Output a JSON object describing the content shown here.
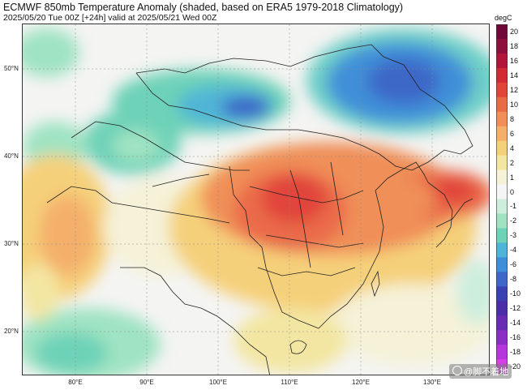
{
  "header": {
    "title": "ECMWF 850mb Temperature Anomaly (shaded, based on ERA5 1979-2018 Climatology)",
    "subtitle": "2025/05/20 Tue 00Z [+24h] valid at 2025/05/21 Wed 00Z"
  },
  "axes": {
    "lat_labels": [
      "50°N",
      "40°N",
      "30°N",
      "20°N"
    ],
    "lon_labels": [
      "80°E",
      "90°E",
      "100°E",
      "110°E",
      "120°E",
      "130°E"
    ]
  },
  "colorbar": {
    "unit": "degC",
    "ticks": [
      "20",
      "18",
      "16",
      "14",
      "12",
      "10",
      "8",
      "6",
      "4",
      "2",
      "1",
      "0",
      "-1",
      "-2",
      "-3",
      "-4",
      "-6",
      "-8",
      "-10",
      "-12",
      "-14",
      "-16",
      "-18",
      "-20"
    ],
    "colors": [
      "#6f0a38",
      "#8e0f3b",
      "#b3143a",
      "#d12a32",
      "#e1453a",
      "#ea6a48",
      "#f08f59",
      "#f4b06a",
      "#f5d07a",
      "#f3e6a2",
      "#f5f2d8",
      "#f5f5f5",
      "#cdeedd",
      "#9fe3c2",
      "#6dd2b7",
      "#4fb5d6",
      "#3f8fd8",
      "#3e67c8",
      "#3b41b0",
      "#4b2ea6",
      "#6a2bb3",
      "#8a2ec5",
      "#b436dc",
      "#d83ee6"
    ]
  },
  "watermark": {
    "text": "@脚不着地"
  }
}
